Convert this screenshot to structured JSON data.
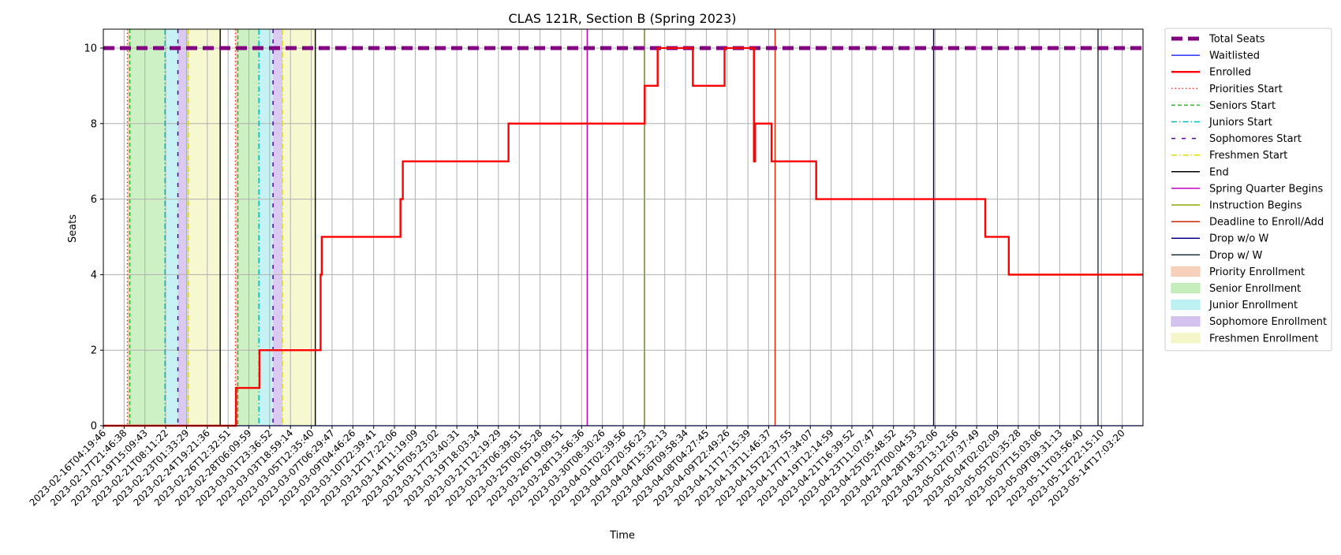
{
  "chart_data": {
    "type": "line",
    "title": "CLAS 121R, Section B (Spring 2023)",
    "xlabel": "Time",
    "ylabel": "Seats",
    "ylim": [
      0,
      10.5
    ],
    "yticks": [
      0,
      2,
      4,
      6,
      8,
      10
    ],
    "grid": true,
    "legend_position": "outside-right",
    "time_unit": "days",
    "xlim": [
      0,
      88.53
    ],
    "x_tick_labels": [
      "2023-02-16T04:19:46",
      "2023-02-17T21:46:38",
      "2023-02-19T15:09:43",
      "2023-02-21T08:11:22",
      "2023-02-23T01:33:29",
      "2023-02-24T19:21:36",
      "2023-02-26T12:32:51",
      "2023-02-28T06:09:59",
      "2023-03-01T23:36:52",
      "2023-03-03T18:59:14",
      "2023-03-05T12:35:40",
      "2023-03-07T06:29:47",
      "2023-03-09T04:46:26",
      "2023-03-10T22:39:41",
      "2023-03-12T17:22:06",
      "2023-03-14T11:19:09",
      "2023-03-16T05:23:02",
      "2023-03-17T23:40:31",
      "2023-03-19T18:03:34",
      "2023-03-21T12:19:29",
      "2023-03-23T06:39:51",
      "2023-03-25T00:55:28",
      "2023-03-26T19:09:51",
      "2023-03-28T13:56:36",
      "2023-03-30T08:30:26",
      "2023-04-01T02:39:56",
      "2023-04-02T20:56:23",
      "2023-04-04T15:32:13",
      "2023-04-06T09:58:34",
      "2023-04-08T04:27:45",
      "2023-04-09T22:49:26",
      "2023-04-11T17:15:39",
      "2023-04-13T11:46:37",
      "2023-04-15T22:37:55",
      "2023-04-17T17:34:07",
      "2023-04-19T12:14:59",
      "2023-04-21T16:39:52",
      "2023-04-23T11:07:47",
      "2023-04-25T05:48:52",
      "2023-04-27T00:04:53",
      "2023-04-28T18:32:06",
      "2023-04-30T13:12:56",
      "2023-05-02T07:37:49",
      "2023-05-04T02:02:09",
      "2023-05-05T20:35:28",
      "2023-05-07T15:03:06",
      "2023-05-09T09:31:13",
      "2023-05-11T03:56:40",
      "2023-05-12T22:15:10",
      "2023-05-14T17:03:20"
    ],
    "series": [
      {
        "name": "Total Seats",
        "color": "#800080",
        "style": "dashed-thick",
        "points": [
          [
            0,
            10
          ],
          [
            88.53,
            10
          ]
        ]
      },
      {
        "name": "Waitlisted",
        "color": "#0000ff",
        "style": "solid-thin",
        "points": [
          [
            0,
            0
          ],
          [
            88.53,
            0
          ]
        ]
      },
      {
        "name": "Enrolled",
        "color": "#ff0000",
        "style": "solid-step",
        "points": [
          [
            0,
            0
          ],
          [
            11.3,
            0
          ],
          [
            11.3,
            1
          ],
          [
            13.3,
            1
          ],
          [
            13.3,
            2
          ],
          [
            18.5,
            2
          ],
          [
            18.5,
            4
          ],
          [
            18.6,
            4
          ],
          [
            18.6,
            5
          ],
          [
            25.3,
            5
          ],
          [
            25.3,
            6
          ],
          [
            25.5,
            6
          ],
          [
            25.5,
            7
          ],
          [
            34.5,
            7
          ],
          [
            34.5,
            8
          ],
          [
            46.1,
            8
          ],
          [
            46.1,
            9
          ],
          [
            47.2,
            9
          ],
          [
            47.2,
            10
          ],
          [
            50.2,
            10
          ],
          [
            50.2,
            9
          ],
          [
            52.9,
            9
          ],
          [
            52.9,
            10
          ],
          [
            55.4,
            10
          ],
          [
            55.4,
            7
          ],
          [
            55.5,
            7
          ],
          [
            55.5,
            8
          ],
          [
            56.9,
            8
          ],
          [
            56.9,
            7
          ],
          [
            60.7,
            7
          ],
          [
            60.7,
            6
          ],
          [
            75.1,
            6
          ],
          [
            75.1,
            5
          ],
          [
            77.1,
            5
          ],
          [
            77.1,
            4
          ],
          [
            88.53,
            4
          ]
        ]
      }
    ],
    "vertical_markers": [
      {
        "name": "Priorities Start",
        "color": "#ff3030",
        "style": "dotted",
        "x": [
          2.05,
          11.25
        ]
      },
      {
        "name": "Seniors Start",
        "color": "#22bb22",
        "style": "dashed",
        "x": [
          2.25,
          11.45
        ]
      },
      {
        "name": "Juniors Start",
        "color": "#00bbbb",
        "style": "dashdot",
        "x": [
          5.25,
          13.25
        ]
      },
      {
        "name": "Sophomores Start",
        "color": "#5500aa",
        "style": "loosedash",
        "x": [
          6.35,
          14.45
        ]
      },
      {
        "name": "Freshmen Start",
        "color": "#dddd00",
        "style": "dashdot",
        "x": [
          7.25,
          15.25
        ]
      },
      {
        "name": "End",
        "color": "#000000",
        "style": "solid",
        "x": [
          9.95,
          18.05
        ]
      },
      {
        "name": "Spring Quarter Begins",
        "color": "#c000c0",
        "style": "solid",
        "x": [
          41.2
        ]
      },
      {
        "name": "Instruction Begins",
        "color": "#88aa00",
        "style": "solid",
        "x": [
          46.1
        ]
      },
      {
        "name": "Deadline to Enroll/Add",
        "color": "#cc2200",
        "style": "solid",
        "x": [
          57.2
        ]
      },
      {
        "name": "Drop w/o W",
        "color": "#000080",
        "style": "solid",
        "x": [
          70.7
        ]
      },
      {
        "name": "Drop w/ W",
        "color": "#203040",
        "style": "solid",
        "x": [
          84.7
        ]
      }
    ],
    "enrollment_periods": [
      {
        "name": "Priority Enrollment",
        "color": "#f6c9b0",
        "ranges": [
          [
            2.05,
            2.25
          ],
          [
            11.25,
            11.45
          ]
        ]
      },
      {
        "name": "Senior Enrollment",
        "color": "#bcebb0",
        "ranges": [
          [
            2.25,
            5.25
          ],
          [
            11.45,
            13.25
          ]
        ]
      },
      {
        "name": "Junior Enrollment",
        "color": "#b3eef0",
        "ranges": [
          [
            5.25,
            6.35
          ],
          [
            13.25,
            14.45
          ]
        ]
      },
      {
        "name": "Sophomore Enrollment",
        "color": "#cdb8ec",
        "ranges": [
          [
            6.35,
            7.25
          ],
          [
            14.45,
            15.25
          ]
        ]
      },
      {
        "name": "Freshmen Enrollment",
        "color": "#f3f5c0",
        "ranges": [
          [
            7.25,
            9.95
          ],
          [
            15.25,
            18.05
          ]
        ]
      }
    ],
    "legend": [
      {
        "label": "Total Seats",
        "kind": "line",
        "color": "#800080",
        "style": "dashed-thick"
      },
      {
        "label": "Waitlisted",
        "kind": "line",
        "color": "#0000ff",
        "style": "solid-thin"
      },
      {
        "label": "Enrolled",
        "kind": "line",
        "color": "#ff0000",
        "style": "solid-thick"
      },
      {
        "label": "Priorities Start",
        "kind": "line",
        "color": "#ff3030",
        "style": "dotted"
      },
      {
        "label": "Seniors Start",
        "kind": "line",
        "color": "#22bb22",
        "style": "dashed"
      },
      {
        "label": "Juniors Start",
        "kind": "line",
        "color": "#00bbbb",
        "style": "dashdot"
      },
      {
        "label": "Sophomores Start",
        "kind": "line",
        "color": "#5500aa",
        "style": "loosedash"
      },
      {
        "label": "Freshmen Start",
        "kind": "line",
        "color": "#dddd00",
        "style": "dashdot"
      },
      {
        "label": "End",
        "kind": "line",
        "color": "#000000",
        "style": "solid"
      },
      {
        "label": "Spring Quarter Begins",
        "kind": "line",
        "color": "#c000c0",
        "style": "solid"
      },
      {
        "label": "Instruction Begins",
        "kind": "line",
        "color": "#88aa00",
        "style": "solid"
      },
      {
        "label": "Deadline to Enroll/Add",
        "kind": "line",
        "color": "#cc2200",
        "style": "solid"
      },
      {
        "label": "Drop w/o W",
        "kind": "line",
        "color": "#000080",
        "style": "solid"
      },
      {
        "label": "Drop w/ W",
        "kind": "line",
        "color": "#203040",
        "style": "solid"
      },
      {
        "label": "Priority Enrollment",
        "kind": "patch",
        "color": "#f6c9b0"
      },
      {
        "label": "Senior Enrollment",
        "kind": "patch",
        "color": "#bcebb0"
      },
      {
        "label": "Junior Enrollment",
        "kind": "patch",
        "color": "#b3eef0"
      },
      {
        "label": "Sophomore Enrollment",
        "kind": "patch",
        "color": "#cdb8ec"
      },
      {
        "label": "Freshmen Enrollment",
        "kind": "patch",
        "color": "#f3f5c0"
      }
    ]
  }
}
